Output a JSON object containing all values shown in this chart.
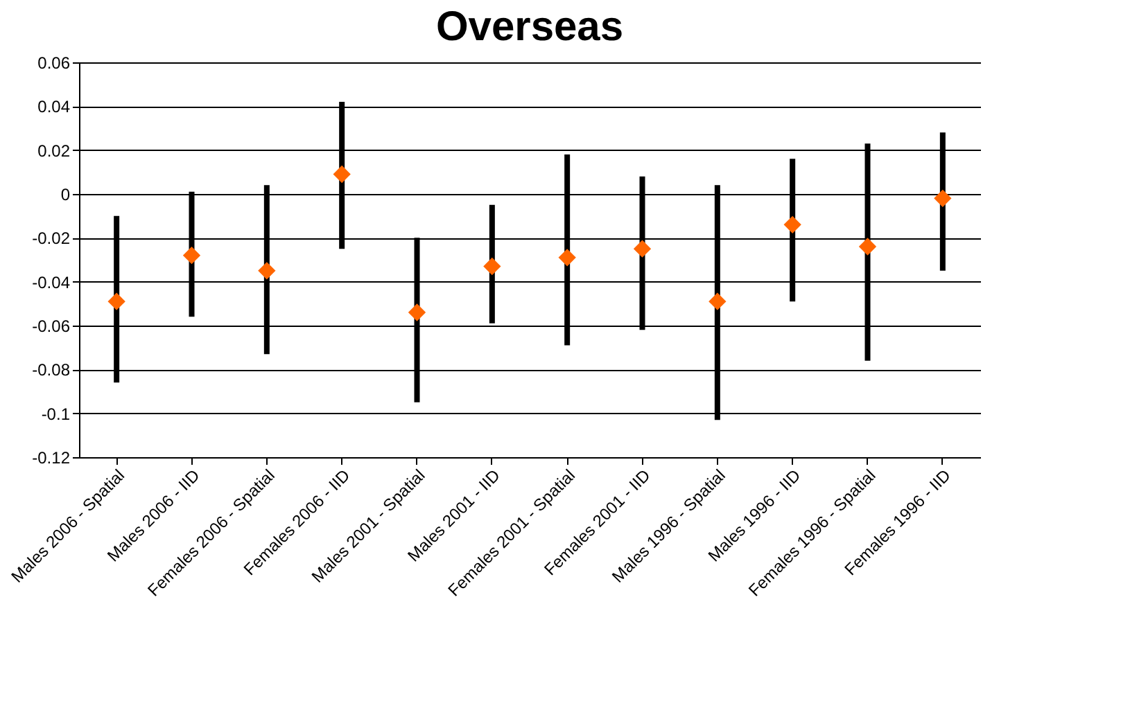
{
  "chart_data": {
    "type": "scatter",
    "title": "Overseas",
    "categories": [
      "Males 2006 - Spatial",
      "Males 2006 - IID",
      "Females 2006 - Spatial",
      "Females 2006 - IID",
      "Males 2001 - Spatial",
      "Males 2001 - IID",
      "Females 2001 - Spatial",
      "Females 2001 - IID",
      "Males 1996 - Spatial",
      "Males 1996 - IID",
      "Females 1996 - Spatial",
      "Females 1996 - IID"
    ],
    "series": [
      {
        "color": "#ff6600",
        "values": [
          -0.049,
          -0.028,
          -0.035,
          0.009,
          -0.054,
          -0.033,
          -0.029,
          -0.025,
          -0.049,
          -0.014,
          -0.024,
          -0.002
        ],
        "errors": [
          [
            -0.086,
            -0.01
          ],
          [
            -0.056,
            0.001
          ],
          [
            -0.073,
            0.004
          ],
          [
            -0.025,
            0.042
          ],
          [
            -0.095,
            -0.02
          ],
          [
            -0.059,
            -0.005
          ],
          [
            -0.069,
            0.018
          ],
          [
            -0.062,
            0.008
          ],
          [
            -0.103,
            0.004
          ],
          [
            -0.049,
            0.016
          ],
          [
            -0.076,
            0.023
          ],
          [
            -0.035,
            0.028
          ]
        ]
      }
    ],
    "ylim": [
      -0.12,
      0.06
    ],
    "yticks": [
      -0.12,
      -0.1,
      -0.08,
      -0.06,
      -0.04,
      -0.02,
      0,
      0.02,
      0.04,
      0.06
    ],
    "grid": "y",
    "marker": "diamond"
  }
}
